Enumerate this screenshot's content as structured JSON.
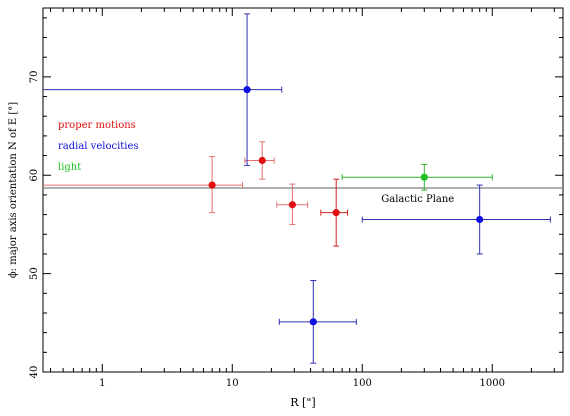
{
  "chart_data": {
    "type": "scatter",
    "xlabel": "R [\"]",
    "ylabel": "ϕ: major axis orientation N of E [°]",
    "x_scale": "log",
    "xlim": [
      0.35,
      3500
    ],
    "ylim": [
      40,
      77
    ],
    "x_ticks": [
      1,
      10,
      100,
      1000
    ],
    "x_tick_labels": [
      "1",
      "10",
      "100",
      "1000"
    ],
    "y_ticks": [
      40,
      50,
      60,
      70
    ],
    "y_tick_labels": [
      "40",
      "50",
      "60",
      "70"
    ],
    "grid": false,
    "legend_position": "left",
    "reference_line": {
      "label": "Galactic Plane",
      "y": 58.7,
      "color": "#808080"
    },
    "series": [
      {
        "name": "proper motions",
        "color": "#e01010",
        "points": [
          {
            "x": 7.0,
            "y": 59.0,
            "x_lo": 0.35,
            "x_hi": 12.0,
            "y_lo": 56.2,
            "y_hi": 61.9,
            "bar_color": "#e07070"
          },
          {
            "x": 17.0,
            "y": 61.5,
            "x_lo": 12.5,
            "x_hi": 21.0,
            "y_lo": 59.6,
            "y_hi": 63.4,
            "bar_color": "#e07070"
          },
          {
            "x": 29.0,
            "y": 57.0,
            "x_lo": 22.0,
            "x_hi": 38.0,
            "y_lo": 55.0,
            "y_hi": 59.1,
            "bar_color": "#e07070"
          },
          {
            "x": 63.0,
            "y": 56.2,
            "x_lo": 48.0,
            "x_hi": 77.0,
            "y_lo": 52.8,
            "y_hi": 59.6,
            "bar_color": "#d42020"
          }
        ]
      },
      {
        "name": "radial velocities",
        "color": "#1010e0",
        "points": [
          {
            "x": 13.0,
            "y": 68.7,
            "x_lo": 0.35,
            "x_hi": 24.0,
            "y_lo": 61.0,
            "y_hi": 76.4,
            "bar_color": "#3030b0"
          },
          {
            "x": 42.0,
            "y": 45.1,
            "x_lo": 23.0,
            "x_hi": 90.0,
            "y_lo": 40.9,
            "y_hi": 49.3,
            "bar_color": "#3030b0"
          },
          {
            "x": 800.0,
            "y": 55.5,
            "x_lo": 100.0,
            "x_hi": 2800.0,
            "y_lo": 52.0,
            "y_hi": 59.0,
            "bar_color": "#3030b0"
          }
        ]
      },
      {
        "name": "light",
        "color": "#20c020",
        "points": [
          {
            "x": 300.0,
            "y": 59.8,
            "x_lo": 70.0,
            "x_hi": 1000.0,
            "y_lo": 58.5,
            "y_hi": 61.1,
            "bar_color": "#30b030"
          }
        ]
      }
    ]
  }
}
